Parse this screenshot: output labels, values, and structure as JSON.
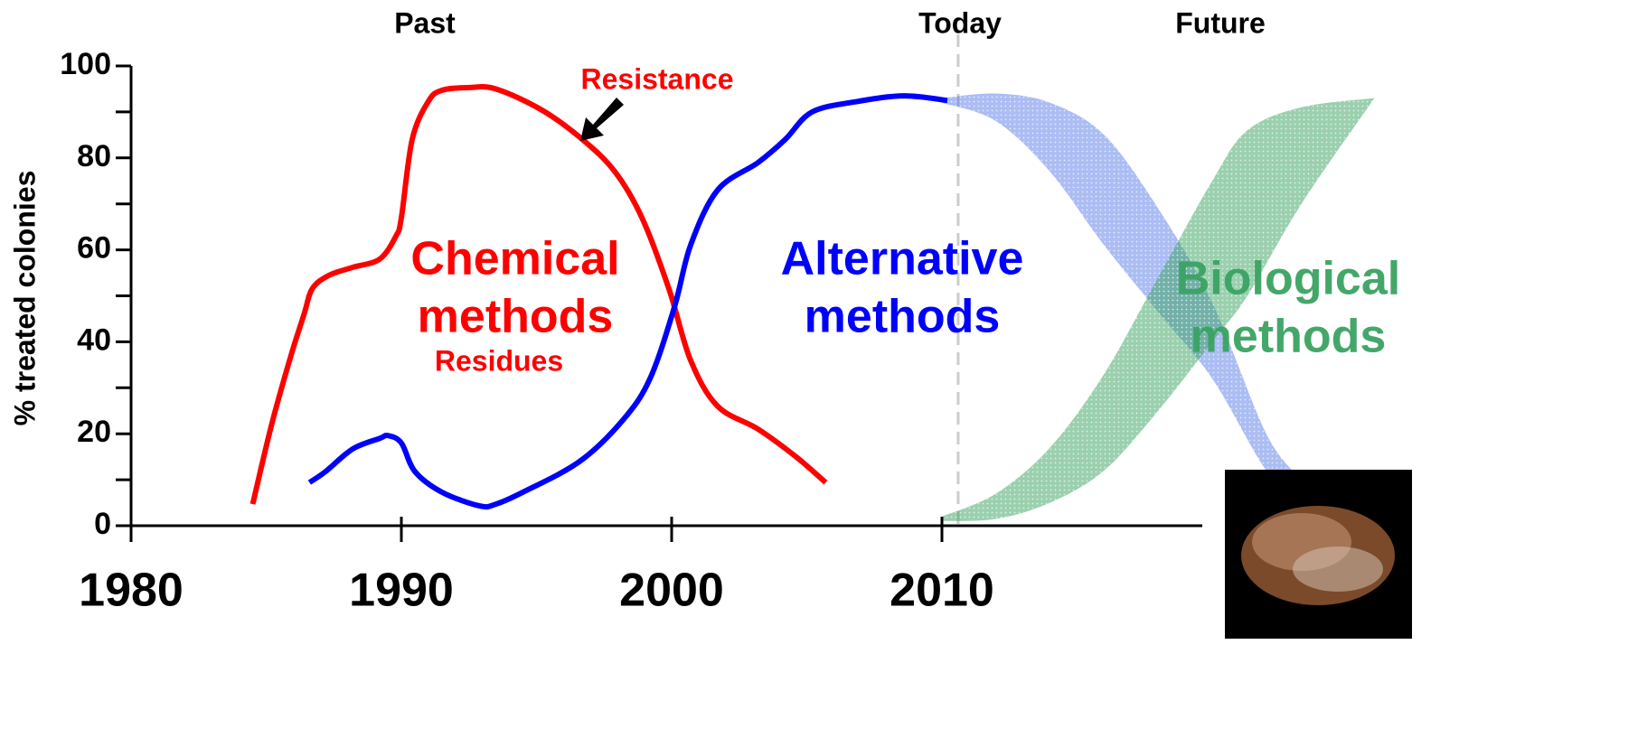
{
  "chart_data": {
    "type": "line",
    "ylabel": "% treated colonies",
    "xlim": [
      1980,
      2027
    ],
    "ylim": [
      0,
      100
    ],
    "xticks": [
      1980,
      1990,
      2000,
      2010
    ],
    "yticks": [
      0,
      20,
      40,
      60,
      80,
      100
    ],
    "yminor": [
      10,
      30,
      50,
      70,
      90
    ],
    "periods": [
      "Past",
      "Today",
      "Future"
    ],
    "today_x": 2010.6,
    "series": [
      {
        "name_lines": [
          "Chemical",
          "methods"
        ],
        "color": "#ff0000",
        "x": [
          1984.5,
          1985.2,
          1985.9,
          1986.4,
          1986.7,
          1987.3,
          1988.2,
          1989.2,
          1989.8,
          1990.0,
          1990.4,
          1991.0,
          1991.5,
          1992.5,
          1993.5,
          1995.2,
          1996.7,
          1997.9,
          1998.9,
          1999.9,
          2000.7,
          2001.7,
          2003.2,
          2004.6,
          2005.7
        ],
        "values": [
          4.7,
          22,
          36.7,
          46,
          51.5,
          54.4,
          56.2,
          58,
          63,
          67,
          84,
          92.3,
          94.7,
          95.3,
          95,
          90.4,
          84,
          77,
          67,
          51.5,
          36,
          26,
          21,
          15,
          9.4
        ]
      },
      {
        "name_lines": [
          "Alternative",
          "methods"
        ],
        "color": "#0000ff",
        "x": [
          1986.6,
          1987.2,
          1988.2,
          1989.2,
          1989.5,
          1990.0,
          1990.5,
          1991.5,
          1992.9,
          1993.5,
          1994.5,
          1996.6,
          1998.2,
          1999.2,
          2000.1,
          2000.7,
          2001.7,
          2003.2,
          2004.2,
          2005.2,
          2006.9,
          2008.6,
          2010.2
        ],
        "values": [
          9.4,
          11.8,
          16.7,
          19,
          19.6,
          18,
          11.8,
          7.3,
          4.3,
          4.7,
          7.3,
          14,
          23,
          32,
          47.5,
          61,
          73,
          79,
          84,
          90,
          92.3,
          93.5,
          92.5
        ]
      }
    ],
    "bands": [
      {
        "color": "#5a7de8",
        "x": [
          2010,
          2012,
          2014,
          2016,
          2018,
          2020,
          2022,
          2023.3
        ],
        "upper": [
          93,
          94,
          92,
          85,
          69,
          48.5,
          20,
          10
        ],
        "lower": [
          92,
          88,
          77,
          61,
          46.5,
          32,
          12,
          5
        ]
      },
      {
        "name_lines": [
          "Biological",
          "methods"
        ],
        "color": "#3aa363",
        "x": [
          2010,
          2012,
          2014,
          2016,
          2018,
          2020,
          2021.3,
          2023.3,
          2026
        ],
        "upper": [
          2,
          7,
          17,
          33,
          54,
          75,
          86,
          91,
          93
        ],
        "lower": [
          1,
          1.5,
          5,
          12,
          25,
          40,
          50,
          70,
          93
        ]
      }
    ],
    "annotations": [
      {
        "text": "Resistance",
        "color": "#ff0000"
      },
      {
        "text": "Residues",
        "color": "#ff0000"
      }
    ]
  }
}
